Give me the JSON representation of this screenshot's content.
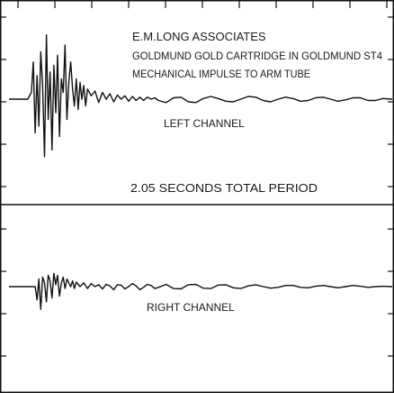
{
  "chart_data": [
    {
      "type": "line",
      "panel": "upper",
      "title": "E.M.LONG ASSOCIATES",
      "annotations": [
        "E.M.LONG ASSOCIATES",
        "GOLDMUND GOLD CARTRIDGE IN GOLDMUND ST4",
        "MECHANICAL IMPULSE TO ARM TUBE",
        "LEFT CHANNEL",
        "2.05 SECONDS TOTAL PERIOD"
      ],
      "series": [
        {
          "name": "LEFT CHANNEL",
          "x": [
            0.0,
            0.05,
            0.1,
            0.12,
            0.13,
            0.14,
            0.15,
            0.16,
            0.17,
            0.18,
            0.19,
            0.2,
            0.21,
            0.22,
            0.23,
            0.24,
            0.25,
            0.26,
            0.27,
            0.28,
            0.29,
            0.3,
            0.31,
            0.32,
            0.33,
            0.34,
            0.35,
            0.36,
            0.37,
            0.38,
            0.39,
            0.4,
            0.41,
            0.42,
            0.44,
            0.46,
            0.48,
            0.5,
            0.52,
            0.54,
            0.56,
            0.58,
            0.6,
            0.62,
            0.64,
            0.66,
            0.68,
            0.7,
            0.72,
            0.74,
            0.76,
            0.78,
            0.8,
            0.84,
            0.88,
            0.92,
            0.96,
            1.0,
            1.04,
            1.08,
            1.12,
            1.16,
            1.2,
            1.24,
            1.28,
            1.32,
            1.36,
            1.4,
            1.44,
            1.48,
            1.52,
            1.56,
            1.6,
            1.64,
            1.68,
            1.72,
            1.76,
            1.8,
            1.84,
            1.88,
            1.92,
            1.96,
            2.0,
            2.05
          ],
          "values": [
            0,
            0,
            0,
            0.1,
            0.55,
            -0.5,
            0.35,
            -0.4,
            0.7,
            0.2,
            -0.85,
            0.95,
            -0.3,
            0.4,
            -0.75,
            0.5,
            -0.2,
            0.65,
            -0.55,
            0.3,
            0.1,
            0.8,
            -0.3,
            0.25,
            0.55,
            0.15,
            -0.1,
            0.3,
            -0.15,
            0.25,
            0.0,
            0.2,
            -0.1,
            0.15,
            0.05,
            0.12,
            -0.05,
            0.1,
            0.0,
            0.08,
            -0.04,
            0.06,
            0.0,
            0.05,
            -0.03,
            0.04,
            -0.02,
            0.03,
            -0.02,
            0.03,
            0.0,
            0.02,
            -0.02,
            -0.05,
            0.02,
            0.03,
            -0.04,
            -0.05,
            0.01,
            0.04,
            0.01,
            -0.03,
            -0.04,
            0.0,
            0.04,
            0.03,
            -0.02,
            -0.04,
            0.0,
            0.03,
            0.01,
            -0.03,
            -0.02,
            0.02,
            0.03,
            0.0,
            -0.03,
            -0.01,
            0.02,
            0.02,
            -0.02,
            -0.02,
            0.01,
            0.0
          ]
        }
      ],
      "xlim": [
        0,
        2.05
      ],
      "ylim": [
        -1,
        1
      ],
      "grid": false
    },
    {
      "type": "line",
      "panel": "lower",
      "annotations": [
        "RIGHT CHANNEL"
      ],
      "series": [
        {
          "name": "RIGHT CHANNEL",
          "x": [
            0.0,
            0.05,
            0.1,
            0.14,
            0.15,
            0.16,
            0.17,
            0.18,
            0.19,
            0.2,
            0.21,
            0.22,
            0.23,
            0.24,
            0.25,
            0.26,
            0.27,
            0.28,
            0.29,
            0.3,
            0.31,
            0.32,
            0.33,
            0.34,
            0.35,
            0.36,
            0.38,
            0.4,
            0.42,
            0.44,
            0.46,
            0.48,
            0.5,
            0.52,
            0.54,
            0.56,
            0.58,
            0.6,
            0.62,
            0.64,
            0.66,
            0.68,
            0.7,
            0.72,
            0.74,
            0.76,
            0.78,
            0.8,
            0.84,
            0.88,
            0.92,
            0.96,
            1.0,
            1.04,
            1.08,
            1.12,
            1.16,
            1.2,
            1.24,
            1.28,
            1.32,
            1.36,
            1.4,
            1.44,
            1.48,
            1.52,
            1.56,
            1.6,
            1.64,
            1.68,
            1.72,
            1.76,
            1.8,
            1.84,
            1.88,
            1.92,
            1.96,
            2.0,
            2.05
          ],
          "values": [
            0,
            0,
            0,
            0.0,
            -0.35,
            0.2,
            -0.6,
            0.25,
            0.1,
            -0.4,
            0.3,
            0.15,
            -0.3,
            0.35,
            0.05,
            0.3,
            -0.25,
            0.1,
            0.25,
            -0.05,
            0.2,
            0.1,
            0.0,
            0.15,
            -0.05,
            0.12,
            0.0,
            0.1,
            -0.05,
            0.08,
            0.0,
            0.05,
            -0.06,
            0.06,
            0.02,
            -0.08,
            0.05,
            0.04,
            -0.06,
            0.0,
            0.08,
            0.02,
            -0.08,
            -0.02,
            0.06,
            0.03,
            -0.05,
            -0.02,
            0.06,
            -0.05,
            -0.06,
            0.05,
            0.06,
            -0.04,
            -0.05,
            0.04,
            0.05,
            -0.03,
            -0.05,
            0.02,
            0.05,
            0.0,
            -0.04,
            -0.02,
            0.03,
            0.03,
            -0.02,
            -0.03,
            0.01,
            0.03,
            0.0,
            -0.03,
            0.0,
            0.03,
            0.01,
            -0.02,
            0.0,
            0.01,
            0.0
          ]
        }
      ],
      "xlim": [
        0,
        2.05
      ],
      "ylim": [
        -1,
        1
      ],
      "grid": false
    }
  ]
}
